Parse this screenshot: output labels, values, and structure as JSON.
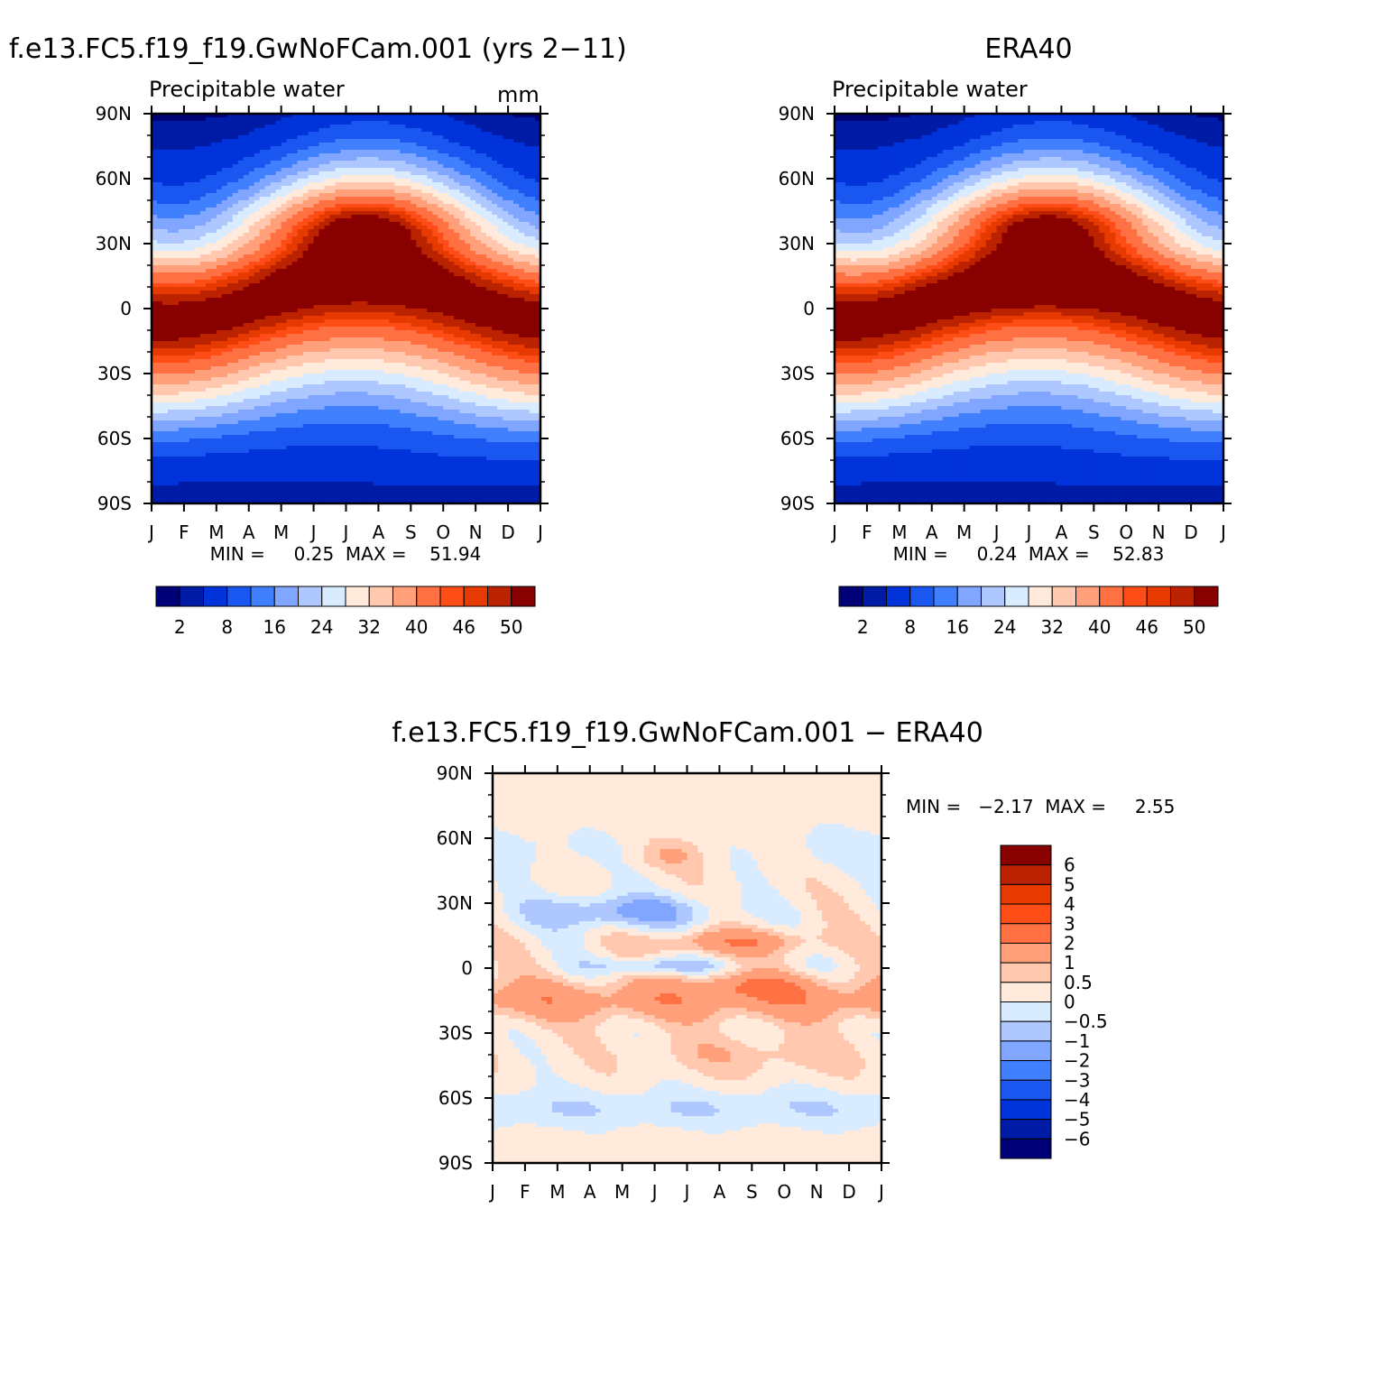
{
  "chart_data": [
    {
      "type": "heatmap",
      "title": "f.e13.FC5.f19_f19.GwNoFCam.001 (yrs 2−11)",
      "subtitle": "Precipitable water",
      "units": "mm",
      "stats_label": "MIN =     0.25  MAX =    51.94",
      "x_ticks": [
        "J",
        "F",
        "M",
        "A",
        "M",
        "J",
        "J",
        "A",
        "S",
        "O",
        "N",
        "D",
        "J"
      ],
      "y_ticks": [
        "90N",
        "60N",
        "30N",
        "0",
        "30S",
        "60S",
        "90S"
      ],
      "colorbar_labels": [
        "2",
        "8",
        "16",
        "24",
        "32",
        "40",
        "46",
        "50"
      ],
      "colorbar_levels": [
        2,
        4,
        8,
        12,
        16,
        20,
        24,
        28,
        32,
        36,
        40,
        44,
        46,
        48,
        50
      ],
      "min": 0.25,
      "max": 51.94,
      "field": "model"
    },
    {
      "type": "heatmap",
      "title": "ERA40",
      "subtitle": "Precipitable water",
      "stats_label": "MIN =     0.24  MAX =    52.83",
      "x_ticks": [
        "J",
        "F",
        "M",
        "A",
        "M",
        "J",
        "J",
        "A",
        "S",
        "O",
        "N",
        "D",
        "J"
      ],
      "y_ticks": [
        "90N",
        "60N",
        "30N",
        "0",
        "30S",
        "60S",
        "90S"
      ],
      "colorbar_labels": [
        "2",
        "8",
        "16",
        "24",
        "32",
        "40",
        "46",
        "50"
      ],
      "colorbar_levels": [
        2,
        4,
        8,
        12,
        16,
        20,
        24,
        28,
        32,
        36,
        40,
        44,
        46,
        48,
        50
      ],
      "min": 0.24,
      "max": 52.83,
      "field": "obs"
    },
    {
      "type": "heatmap",
      "title": "f.e13.FC5.f19_f19.GwNoFCam.001 − ERA40",
      "stats_label": "MIN =   −2.17  MAX =     2.55",
      "x_ticks": [
        "J",
        "F",
        "M",
        "A",
        "M",
        "J",
        "J",
        "A",
        "S",
        "O",
        "N",
        "D",
        "J"
      ],
      "y_ticks": [
        "90N",
        "60N",
        "30N",
        "0",
        "30S",
        "60S",
        "90S"
      ],
      "colorbar_labels": [
        "6",
        "5",
        "4",
        "3",
        "2",
        "1",
        "0.5",
        "0",
        "−0.5",
        "−1",
        "−2",
        "−3",
        "−4",
        "−5",
        "−6"
      ],
      "colorbar_levels": [
        -6,
        -5,
        -4,
        -3,
        -2,
        -1,
        -0.5,
        0,
        0.5,
        1,
        2,
        3,
        4,
        5,
        6
      ],
      "min": -2.17,
      "max": 2.55,
      "field": "diff"
    }
  ],
  "colors": {
    "seq": [
      "#000077",
      "#001ba6",
      "#0033d9",
      "#1a56f0",
      "#4080ff",
      "#80a6ff",
      "#aec8ff",
      "#d9ecff",
      "#ffeadb",
      "#ffc8af",
      "#ffa07a",
      "#ff7043",
      "#ff4d17",
      "#e63a00",
      "#bb2200",
      "#880000"
    ],
    "div": [
      "#000077",
      "#001ba6",
      "#0033d9",
      "#1a56f0",
      "#4080ff",
      "#80a6ff",
      "#aec8ff",
      "#d9ecff",
      "#ffeadb",
      "#ffc8af",
      "#ffa07a",
      "#ff7043",
      "#ff4d17",
      "#e63a00",
      "#bb2200",
      "#880000"
    ]
  }
}
